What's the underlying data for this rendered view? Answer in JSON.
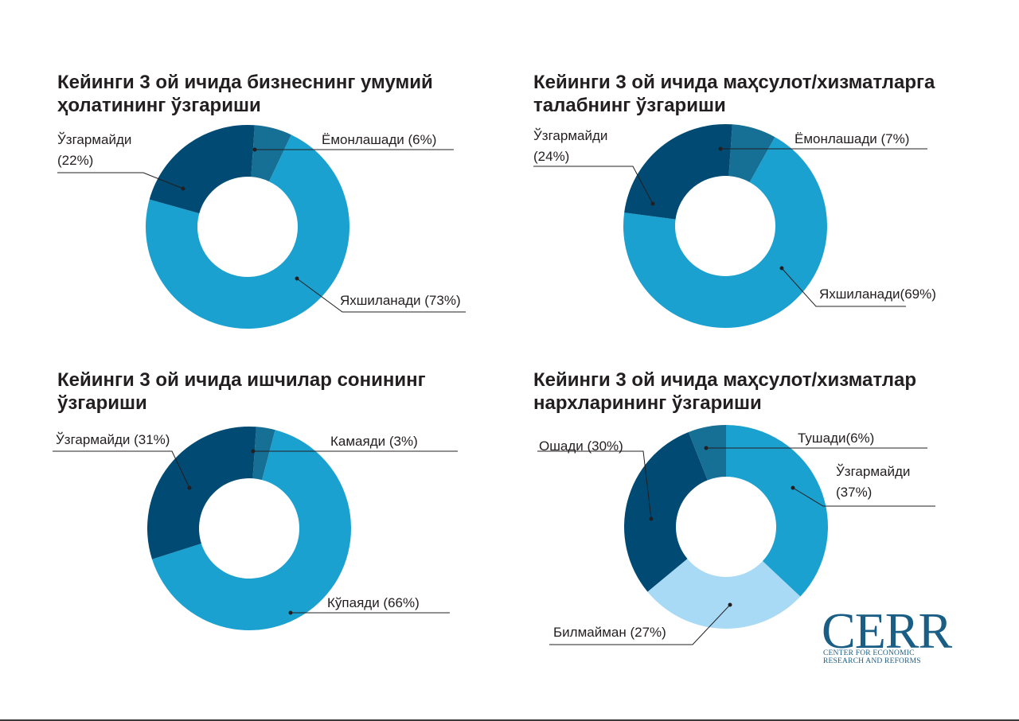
{
  "chart_data": [
    {
      "type": "pie",
      "title": "Кейинги 3 ой ичида бизнеснинг умумий ҳолатининг ўзгариши",
      "slices": [
        {
          "label": "Ёмонлашади (6%)",
          "value": 6,
          "color": "#166f95"
        },
        {
          "label": "Яхшиланади (73%)",
          "value": 73,
          "color": "#1ba1cf"
        },
        {
          "label": "Ўзгармайди (22%)",
          "value": 22,
          "color": "#004a73"
        }
      ]
    },
    {
      "type": "pie",
      "title": "Кейинги 3 ой ичида маҳсулот/хизматларга талабнинг ўзгариши",
      "slices": [
        {
          "label": "Ёмонлашади (7%)",
          "value": 7,
          "color": "#166f95"
        },
        {
          "label": "Яхшиланади(69%)",
          "value": 69,
          "color": "#1ba1cf"
        },
        {
          "label": "Ўзгармайди (24%)",
          "value": 24,
          "color": "#004a73"
        }
      ]
    },
    {
      "type": "pie",
      "title": "Кейинги 3 ой ичида ишчилар сонининг ўзгариши",
      "slices": [
        {
          "label": "Камаяди (3%)",
          "value": 3,
          "color": "#166f95"
        },
        {
          "label": "Кўпаяди (66%)",
          "value": 66,
          "color": "#1ba1cf"
        },
        {
          "label": "Ўзгармайди (31%)",
          "value": 31,
          "color": "#004a73"
        }
      ]
    },
    {
      "type": "pie",
      "title": "Кейинги 3 ой ичида маҳсулот/хизматлар нархларининг ўзгариши",
      "slices": [
        {
          "label": "Ўзгармайди (37%)",
          "value": 37,
          "color": "#1ba1cf"
        },
        {
          "label": "Билмайман (27%)",
          "value": 27,
          "color": "#a8daf6"
        },
        {
          "label": "Ошади (30%)",
          "value": 30,
          "color": "#004a73"
        },
        {
          "label": "Тушади(6%)",
          "value": 6,
          "color": "#166f95"
        }
      ]
    }
  ],
  "logo": {
    "name": "CERR",
    "line1": "CENTER FOR ECONOMIC",
    "line2": "RESEARCH AND REFORMS"
  }
}
